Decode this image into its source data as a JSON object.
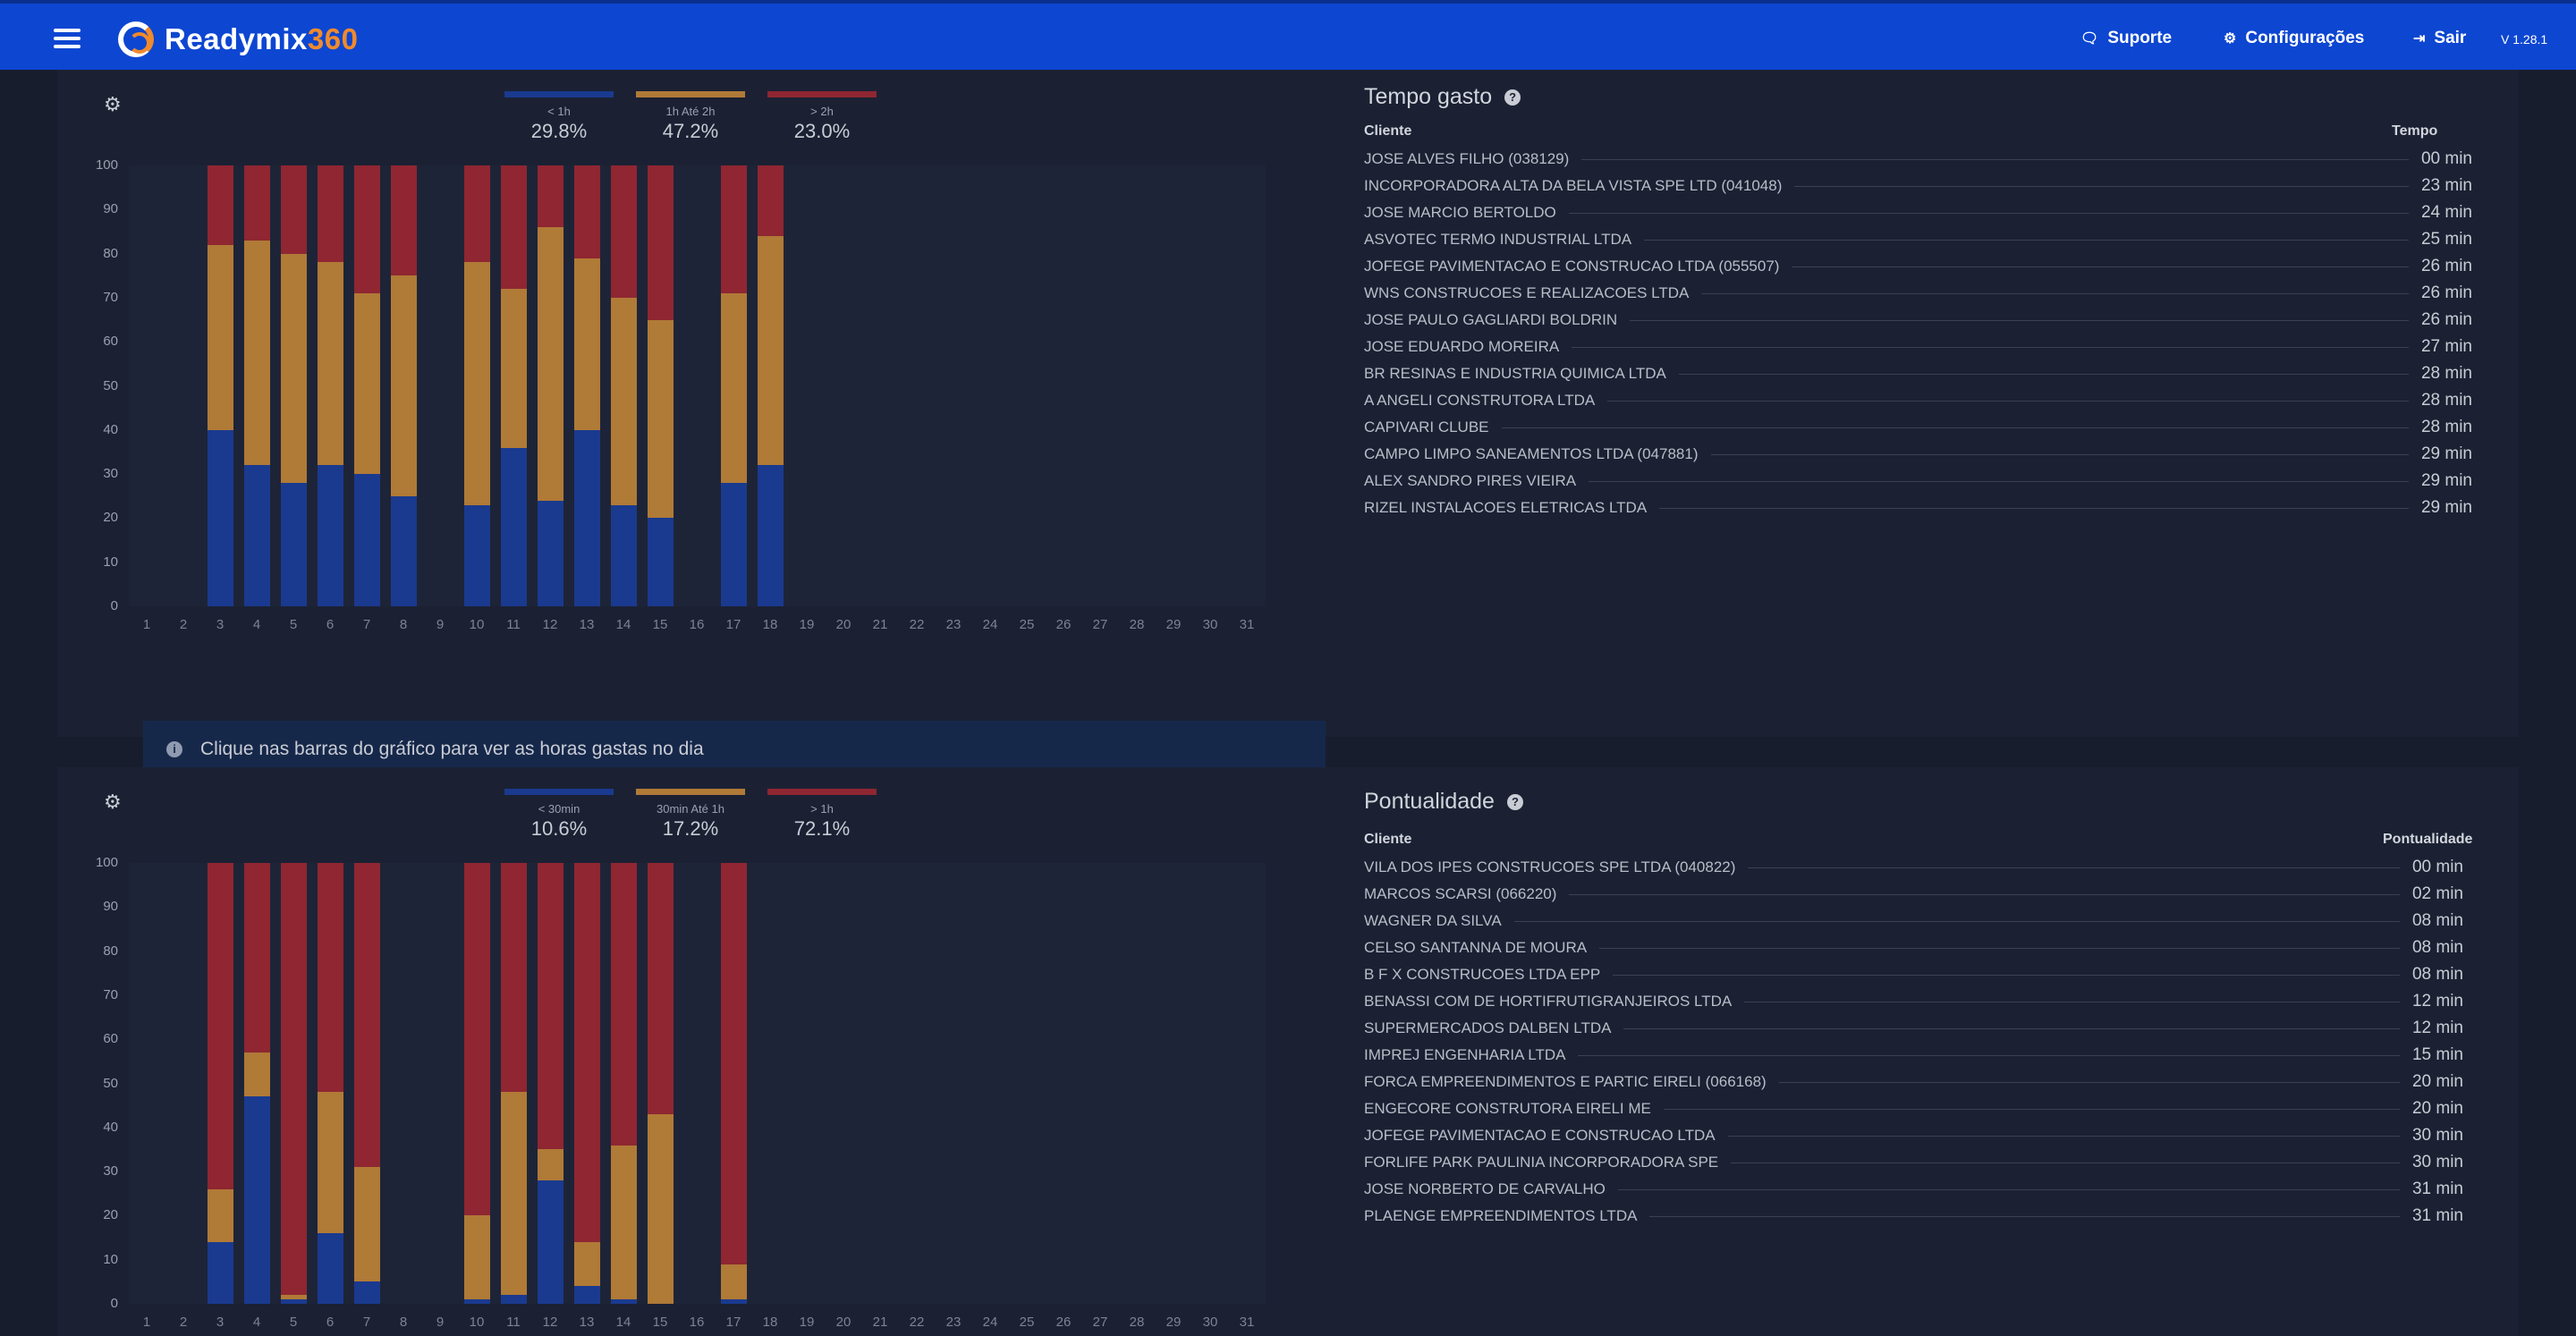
{
  "header": {
    "brand_a": "Readymix",
    "brand_b": "360",
    "support": "Suporte",
    "settings": "Configurações",
    "logout": "Sair",
    "version": "V 1.28.1"
  },
  "info_message": "Clique nas barras do gráfico para ver as horas gastas no dia",
  "colors": {
    "blue": "#1a3a8f",
    "orange": "#b07a37",
    "red": "#8f2632"
  },
  "tempo": {
    "title": "Tempo gasto",
    "col_client": "Cliente",
    "col_value": "Tempo",
    "legend": [
      {
        "label": "< 1h",
        "pct": "29.8%"
      },
      {
        "label": "1h Até 2h",
        "pct": "47.2%"
      },
      {
        "label": "> 2h",
        "pct": "23.0%"
      }
    ],
    "rows": [
      {
        "name": "JOSE ALVES FILHO (038129)",
        "value": "00 min"
      },
      {
        "name": "INCORPORADORA ALTA DA BELA VISTA SPE LTD (041048)",
        "value": "23 min"
      },
      {
        "name": "JOSE MARCIO BERTOLDO",
        "value": "24 min"
      },
      {
        "name": "ASVOTEC TERMO INDUSTRIAL LTDA",
        "value": "25 min"
      },
      {
        "name": "JOFEGE PAVIMENTACAO E CONSTRUCAO LTDA (055507)",
        "value": "26 min"
      },
      {
        "name": "WNS CONSTRUCOES E REALIZACOES LTDA",
        "value": "26 min"
      },
      {
        "name": "JOSE PAULO GAGLIARDI BOLDRIN",
        "value": "26 min"
      },
      {
        "name": "JOSE EDUARDO MOREIRA",
        "value": "27 min"
      },
      {
        "name": "BR RESINAS E INDUSTRIA QUIMICA LTDA",
        "value": "28 min"
      },
      {
        "name": "A ANGELI CONSTRUTORA LTDA",
        "value": "28 min"
      },
      {
        "name": "CAPIVARI CLUBE",
        "value": "28 min"
      },
      {
        "name": "CAMPO LIMPO SANEAMENTOS LTDA (047881)",
        "value": "29 min"
      },
      {
        "name": "ALEX SANDRO PIRES VIEIRA",
        "value": "29 min"
      },
      {
        "name": "RIZEL INSTALACOES ELETRICAS LTDA",
        "value": "29 min"
      }
    ]
  },
  "pont": {
    "title": "Pontualidade",
    "col_client": "Cliente",
    "col_value": "Pontualidade",
    "legend": [
      {
        "label": "< 30min",
        "pct": "10.6%"
      },
      {
        "label": "30min Até 1h",
        "pct": "17.2%"
      },
      {
        "label": "> 1h",
        "pct": "72.1%"
      }
    ],
    "rows": [
      {
        "name": "VILA DOS IPES CONSTRUCOES SPE LTDA (040822)",
        "value": "00 min"
      },
      {
        "name": "MARCOS SCARSI (066220)",
        "value": "02 min"
      },
      {
        "name": "WAGNER DA SILVA",
        "value": "08 min"
      },
      {
        "name": "CELSO SANTANNA DE MOURA",
        "value": "08 min"
      },
      {
        "name": "B F X CONSTRUCOES LTDA EPP",
        "value": "08 min"
      },
      {
        "name": "BENASSI COM DE HORTIFRUTIGRANJEIROS LTDA",
        "value": "12 min"
      },
      {
        "name": "SUPERMERCADOS DALBEN LTDA",
        "value": "12 min"
      },
      {
        "name": "IMPREJ ENGENHARIA LTDA",
        "value": "15 min"
      },
      {
        "name": "FORCA EMPREENDIMENTOS E PARTIC EIRELI (066168)",
        "value": "20 min"
      },
      {
        "name": "ENGECORE CONSTRUTORA EIRELI ME",
        "value": "20 min"
      },
      {
        "name": "JOFEGE PAVIMENTACAO E CONSTRUCAO LTDA",
        "value": "30 min"
      },
      {
        "name": "FORLIFE PARK PAULINIA INCORPORADORA SPE",
        "value": "30 min"
      },
      {
        "name": "JOSE NORBERTO DE CARVALHO",
        "value": "31 min"
      },
      {
        "name": "PLAENGE EMPREENDIMENTOS LTDA",
        "value": "31 min"
      }
    ]
  },
  "chart_data": [
    {
      "type": "bar",
      "stacked": true,
      "x": [
        "1",
        "2",
        "3",
        "4",
        "5",
        "6",
        "7",
        "8",
        "9",
        "10",
        "11",
        "12",
        "13",
        "14",
        "15",
        "16",
        "17",
        "18",
        "19",
        "20",
        "21",
        "22",
        "23",
        "24",
        "25",
        "26",
        "27",
        "28",
        "29",
        "30",
        "31"
      ],
      "yticks": [
        "100",
        "90",
        "80",
        "70",
        "60",
        "50",
        "40",
        "30",
        "20",
        "10",
        "0"
      ],
      "ylim": [
        0,
        100
      ],
      "series": [
        {
          "name": "< 1h",
          "values": [
            0,
            0,
            40,
            32,
            28,
            32,
            30,
            25,
            0,
            23,
            36,
            24,
            40,
            23,
            20,
            0,
            28,
            32,
            0,
            0,
            0,
            0,
            0,
            0,
            0,
            0,
            0,
            0,
            0,
            0,
            0
          ]
        },
        {
          "name": "1h Até 2h",
          "values": [
            0,
            0,
            42,
            51,
            52,
            46,
            41,
            50,
            0,
            55,
            36,
            62,
            39,
            47,
            45,
            0,
            43,
            52,
            0,
            0,
            0,
            0,
            0,
            0,
            0,
            0,
            0,
            0,
            0,
            0,
            0
          ]
        },
        {
          "name": "> 2h",
          "values": [
            0,
            0,
            18,
            17,
            20,
            22,
            29,
            25,
            0,
            22,
            28,
            14,
            21,
            30,
            35,
            0,
            29,
            16,
            0,
            0,
            0,
            0,
            0,
            0,
            0,
            0,
            0,
            0,
            0,
            0,
            0
          ]
        }
      ]
    },
    {
      "type": "bar",
      "stacked": true,
      "x": [
        "1",
        "2",
        "3",
        "4",
        "5",
        "6",
        "7",
        "8",
        "9",
        "10",
        "11",
        "12",
        "13",
        "14",
        "15",
        "16",
        "17",
        "18",
        "19",
        "20",
        "21",
        "22",
        "23",
        "24",
        "25",
        "26",
        "27",
        "28",
        "29",
        "30",
        "31"
      ],
      "yticks": [
        "100",
        "90",
        "80",
        "70",
        "60",
        "50",
        "40",
        "30",
        "20",
        "10",
        "0"
      ],
      "ylim": [
        0,
        100
      ],
      "series": [
        {
          "name": "< 30min",
          "values": [
            0,
            0,
            14,
            47,
            1,
            16,
            5,
            0,
            0,
            1,
            2,
            28,
            4,
            1,
            0,
            0,
            1,
            0,
            0,
            0,
            0,
            0,
            0,
            0,
            0,
            0,
            0,
            0,
            0,
            0,
            0
          ]
        },
        {
          "name": "30min Até 1h",
          "values": [
            0,
            0,
            12,
            10,
            1,
            32,
            26,
            0,
            0,
            19,
            46,
            7,
            10,
            35,
            43,
            0,
            8,
            0,
            0,
            0,
            0,
            0,
            0,
            0,
            0,
            0,
            0,
            0,
            0,
            0,
            0
          ]
        },
        {
          "name": "> 1h",
          "values": [
            0,
            0,
            74,
            43,
            98,
            52,
            69,
            0,
            0,
            80,
            52,
            65,
            86,
            64,
            57,
            0,
            91,
            0,
            0,
            0,
            0,
            0,
            0,
            0,
            0,
            0,
            0,
            0,
            0,
            0,
            0
          ]
        }
      ]
    }
  ]
}
